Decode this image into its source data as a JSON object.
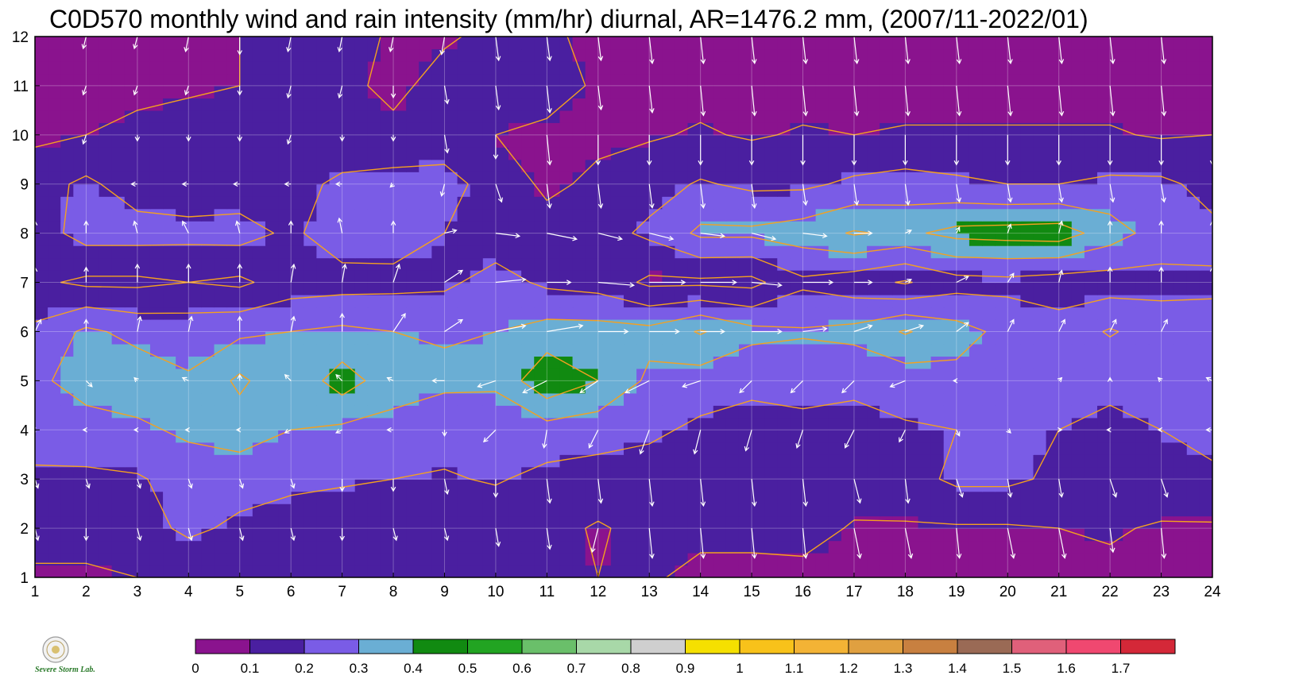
{
  "chart_data": {
    "type": "heatmap",
    "title": "C0D570 monthly wind and rain intensity (mm/hr) diurnal, AR=1476.2 mm, (2007/11-2022/01)",
    "xlabel": "",
    "ylabel": "",
    "x": [
      1,
      2,
      3,
      4,
      5,
      6,
      7,
      8,
      9,
      10,
      11,
      12,
      13,
      14,
      15,
      16,
      17,
      18,
      19,
      20,
      21,
      22,
      23,
      24
    ],
    "y": [
      1,
      2,
      3,
      4,
      5,
      6,
      7,
      8,
      9,
      10,
      11,
      12
    ],
    "xlim": [
      1,
      24
    ],
    "ylim": [
      1,
      12
    ],
    "x_tick_labels": [
      "1",
      "2",
      "3",
      "4",
      "5",
      "6",
      "7",
      "8",
      "9",
      "10",
      "11",
      "12",
      "13",
      "14",
      "15",
      "16",
      "17",
      "18",
      "19",
      "20",
      "21",
      "22",
      "23",
      "24"
    ],
    "y_tick_labels": [
      "1",
      "2",
      "3",
      "4",
      "5",
      "6",
      "7",
      "8",
      "9",
      "10",
      "11",
      "12"
    ],
    "grid": true,
    "contour_levels": [
      0.1,
      0.2,
      0.3,
      0.4,
      0.5
    ],
    "rain_intensity": [
      [
        0.08,
        0.08,
        0.1,
        0.12,
        0.12,
        0.1,
        0.11,
        0.11,
        0.12,
        0.12,
        0.12,
        0.1,
        0.11,
        0.08,
        0.08,
        0.07,
        0.06,
        0.06,
        0.06,
        0.05,
        0.05,
        0.08,
        0.06,
        0.06
      ],
      [
        0.15,
        0.15,
        0.16,
        0.22,
        0.18,
        0.16,
        0.15,
        0.14,
        0.14,
        0.13,
        0.13,
        0.09,
        0.13,
        0.12,
        0.12,
        0.14,
        0.09,
        0.09,
        0.09,
        0.09,
        0.1,
        0.11,
        0.09,
        0.09
      ],
      [
        0.18,
        0.18,
        0.19,
        0.24,
        0.24,
        0.22,
        0.21,
        0.2,
        0.19,
        0.21,
        0.17,
        0.16,
        0.15,
        0.15,
        0.15,
        0.17,
        0.15,
        0.16,
        0.22,
        0.22,
        0.18,
        0.17,
        0.16,
        0.17
      ],
      [
        0.25,
        0.26,
        0.28,
        0.32,
        0.35,
        0.3,
        0.28,
        0.27,
        0.24,
        0.23,
        0.26,
        0.24,
        0.22,
        0.18,
        0.17,
        0.17,
        0.17,
        0.19,
        0.2,
        0.21,
        0.2,
        0.18,
        0.2,
        0.25
      ],
      [
        0.28,
        0.34,
        0.36,
        0.31,
        0.42,
        0.32,
        0.45,
        0.34,
        0.32,
        0.32,
        0.48,
        0.4,
        0.28,
        0.25,
        0.22,
        0.24,
        0.22,
        0.24,
        0.27,
        0.25,
        0.24,
        0.22,
        0.23,
        0.26
      ],
      [
        0.22,
        0.32,
        0.27,
        0.26,
        0.28,
        0.3,
        0.32,
        0.3,
        0.29,
        0.3,
        0.34,
        0.34,
        0.33,
        0.41,
        0.33,
        0.31,
        0.33,
        0.41,
        0.34,
        0.27,
        0.24,
        0.31,
        0.25,
        0.22
      ],
      [
        0.12,
        0.08,
        0.08,
        0.1,
        0.08,
        0.15,
        0.16,
        0.17,
        0.18,
        0.24,
        0.18,
        0.16,
        0.08,
        0.08,
        0.07,
        0.18,
        0.14,
        0.09,
        0.16,
        0.17,
        0.15,
        0.15,
        0.17,
        0.19
      ],
      [
        0.15,
        0.24,
        0.24,
        0.23,
        0.24,
        0.18,
        0.26,
        0.25,
        0.2,
        0.14,
        0.12,
        0.16,
        0.22,
        0.32,
        0.32,
        0.35,
        0.41,
        0.38,
        0.43,
        0.44,
        0.45,
        0.35,
        0.25,
        0.22
      ],
      [
        0.16,
        0.22,
        0.15,
        0.14,
        0.14,
        0.15,
        0.23,
        0.24,
        0.26,
        0.13,
        0.09,
        0.11,
        0.16,
        0.21,
        0.18,
        0.18,
        0.22,
        0.24,
        0.22,
        0.2,
        0.2,
        0.22,
        0.22,
        0.17
      ],
      [
        0.08,
        0.1,
        0.12,
        0.13,
        0.13,
        0.12,
        0.1,
        0.12,
        0.11,
        0.1,
        0.07,
        0.09,
        0.09,
        0.11,
        0.09,
        0.11,
        0.1,
        0.11,
        0.11,
        0.11,
        0.11,
        0.11,
        0.09,
        0.1
      ],
      [
        0.06,
        0.06,
        0.08,
        0.09,
        0.1,
        0.12,
        0.12,
        0.08,
        0.13,
        0.14,
        0.16,
        0.08,
        0.07,
        0.07,
        0.07,
        0.06,
        0.06,
        0.06,
        0.06,
        0.06,
        0.06,
        0.06,
        0.06,
        0.06
      ],
      [
        0.05,
        0.05,
        0.07,
        0.08,
        0.1,
        0.13,
        0.13,
        0.09,
        0.09,
        0.12,
        0.12,
        0.07,
        0.06,
        0.06,
        0.06,
        0.06,
        0.05,
        0.05,
        0.05,
        0.05,
        0.05,
        0.05,
        0.05,
        0.05
      ]
    ],
    "wind_u": [
      [
        0.0,
        0.0,
        0.0,
        0.0,
        0.0,
        0.05,
        0.0,
        0.05,
        -0.1,
        0.0,
        0.05,
        0.0,
        0.05,
        0.05,
        0.05,
        0.05,
        0.05,
        0.05,
        0.05,
        0.05,
        0.05,
        0.05,
        0.05,
        0.05
      ],
      [
        0.05,
        0.0,
        0.05,
        0.05,
        0.05,
        0.05,
        0.0,
        0.05,
        0.05,
        0.05,
        0.05,
        -0.1,
        0.05,
        0.05,
        0.05,
        0.05,
        0.1,
        0.1,
        0.05,
        0.1,
        0.1,
        0.05,
        0.05,
        0.05
      ],
      [
        0.05,
        0.05,
        0.05,
        0.05,
        0.05,
        0.05,
        0.0,
        0.0,
        0.05,
        0.0,
        0.05,
        0.05,
        0.05,
        0.05,
        0.05,
        0.05,
        0.1,
        0.05,
        0.1,
        0.05,
        0.05,
        0.1,
        0.1,
        0.05
      ],
      [
        -0.05,
        -0.05,
        -0.05,
        -0.05,
        -0.05,
        -0.1,
        -0.1,
        -0.1,
        0.0,
        -0.2,
        -0.05,
        -0.15,
        -0.15,
        -0.1,
        -0.1,
        -0.1,
        -0.15,
        -0.1,
        0.05,
        0.05,
        0.05,
        -0.05,
        -0.05,
        -0.1
      ],
      [
        -0.1,
        0.1,
        -0.05,
        -0.1,
        0.0,
        -0.1,
        -0.1,
        -0.1,
        -0.2,
        -0.3,
        -0.4,
        -0.3,
        -0.4,
        -0.3,
        -0.2,
        -0.2,
        -0.2,
        -0.25,
        -0.05,
        0.0,
        0.05,
        0.0,
        -0.05,
        -0.1
      ],
      [
        0.1,
        0.0,
        0.05,
        0.05,
        0.0,
        0.05,
        0.0,
        0.2,
        0.3,
        0.5,
        0.6,
        0.5,
        0.5,
        0.4,
        0.5,
        0.4,
        0.3,
        0.3,
        0.2,
        0.1,
        0.1,
        0.1,
        0.1,
        0.1
      ],
      [
        0.0,
        0.0,
        0.0,
        0.0,
        0.0,
        0.05,
        0.05,
        0.1,
        0.3,
        0.5,
        0.4,
        0.6,
        0.6,
        0.6,
        0.5,
        0.5,
        0.3,
        0.1,
        0.2,
        0.1,
        0.05,
        0.0,
        0.0,
        0.0
      ],
      [
        0.0,
        0.0,
        -0.05,
        -0.1,
        -0.05,
        0.0,
        -0.05,
        0.0,
        0.2,
        0.4,
        0.5,
        0.4,
        0.4,
        0.4,
        0.4,
        0.4,
        0.3,
        0.1,
        0.05,
        0.05,
        0.05,
        0.0,
        0.0,
        0.0
      ],
      [
        0.0,
        0.0,
        -0.1,
        -0.1,
        -0.1,
        -0.1,
        -0.1,
        -0.05,
        -0.05,
        0.1,
        0.05,
        0.05,
        0.05,
        0.05,
        0.05,
        0.05,
        0.05,
        0.05,
        0.05,
        0.05,
        0.05,
        0.05,
        0.05,
        0.05
      ],
      [
        -0.05,
        -0.05,
        0.0,
        0.0,
        0.0,
        -0.05,
        0.0,
        0.0,
        0.05,
        0.0,
        0.05,
        0.0,
        0.0,
        0.0,
        0.0,
        0.0,
        0.0,
        0.0,
        0.0,
        0.0,
        0.0,
        0.0,
        0.0,
        0.0
      ],
      [
        -0.05,
        -0.05,
        -0.05,
        -0.05,
        0.0,
        -0.05,
        -0.05,
        0.0,
        0.05,
        0.05,
        0.05,
        0.05,
        0.05,
        0.05,
        0.05,
        0.05,
        0.05,
        0.05,
        0.05,
        0.05,
        0.05,
        0.05,
        0.05,
        0.05
      ],
      [
        -0.05,
        -0.05,
        -0.05,
        -0.05,
        0.0,
        -0.05,
        -0.05,
        -0.05,
        -0.05,
        0.05,
        0.05,
        0.05,
        0.05,
        0.05,
        0.05,
        0.05,
        0.05,
        0.05,
        0.05,
        0.05,
        0.05,
        0.05,
        0.05,
        0.05
      ]
    ],
    "wind_v": [
      [
        -0.3,
        -0.35,
        -0.35,
        -0.3,
        -0.3,
        -0.35,
        -0.3,
        -0.3,
        -0.3,
        -0.45,
        -0.5,
        -0.5,
        -0.6,
        -0.5,
        -0.5,
        -0.5,
        -0.5,
        -0.5,
        -0.5,
        -0.5,
        -0.5,
        -0.5,
        -0.5,
        -0.5
      ],
      [
        -0.2,
        -0.2,
        -0.2,
        -0.2,
        -0.2,
        -0.2,
        -0.2,
        -0.2,
        -0.2,
        -0.3,
        -0.35,
        -0.4,
        -0.5,
        -0.5,
        -0.5,
        -0.5,
        -0.5,
        -0.5,
        -0.5,
        -0.5,
        -0.5,
        -0.4,
        -0.5,
        -0.45
      ],
      [
        -0.15,
        -0.15,
        -0.15,
        -0.15,
        -0.15,
        -0.15,
        -0.2,
        -0.2,
        -0.25,
        -0.3,
        -0.4,
        -0.4,
        -0.45,
        -0.45,
        -0.45,
        -0.45,
        -0.4,
        -0.4,
        -0.3,
        -0.3,
        -0.3,
        -0.3,
        -0.3,
        -0.3
      ],
      [
        0.0,
        0.0,
        0.0,
        0.0,
        0.0,
        -0.05,
        -0.05,
        0.0,
        -0.1,
        -0.2,
        -0.3,
        -0.3,
        -0.4,
        -0.4,
        -0.35,
        -0.3,
        -0.3,
        -0.2,
        -0.1,
        -0.05,
        0.0,
        0.0,
        0.0,
        0.0
      ],
      [
        0.05,
        -0.1,
        0.05,
        0.05,
        0.1,
        0.1,
        0.1,
        0.05,
        0.0,
        -0.1,
        -0.2,
        -0.2,
        -0.2,
        -0.1,
        -0.2,
        -0.2,
        -0.2,
        -0.1,
        0.0,
        0.0,
        0.05,
        0.05,
        0.05,
        0.05
      ],
      [
        0.2,
        0.2,
        0.25,
        0.25,
        0.25,
        0.25,
        0.3,
        0.3,
        0.2,
        0.1,
        0.1,
        0.0,
        0.0,
        0.0,
        0.0,
        0.05,
        0.1,
        0.1,
        0.15,
        0.2,
        0.2,
        0.2,
        0.2,
        0.2
      ],
      [
        0.25,
        0.25,
        0.3,
        0.3,
        0.3,
        0.3,
        0.3,
        0.3,
        0.2,
        0.05,
        0.0,
        -0.05,
        0.0,
        0.0,
        -0.05,
        0.0,
        0.0,
        0.05,
        0.1,
        0.15,
        0.2,
        0.25,
        0.25,
        0.25
      ],
      [
        0.2,
        0.2,
        0.2,
        0.2,
        0.2,
        0.2,
        0.25,
        0.2,
        0.05,
        -0.05,
        -0.1,
        -0.1,
        -0.1,
        -0.05,
        -0.1,
        -0.05,
        0.0,
        0.05,
        0.1,
        0.15,
        0.2,
        0.2,
        0.2,
        0.2
      ],
      [
        0.0,
        0.0,
        0.0,
        0.0,
        0.0,
        0.0,
        0.0,
        -0.05,
        -0.2,
        -0.3,
        -0.4,
        -0.4,
        -0.4,
        -0.4,
        -0.4,
        -0.35,
        -0.35,
        -0.35,
        -0.3,
        -0.3,
        -0.3,
        -0.3,
        -0.3,
        -0.3
      ],
      [
        -0.15,
        -0.15,
        -0.1,
        -0.1,
        -0.1,
        -0.15,
        -0.1,
        -0.1,
        -0.3,
        -0.4,
        -0.5,
        -0.5,
        -0.5,
        -0.5,
        -0.5,
        -0.5,
        -0.5,
        -0.5,
        -0.5,
        -0.5,
        -0.5,
        -0.5,
        -0.5,
        -0.5
      ],
      [
        -0.15,
        -0.15,
        -0.15,
        -0.15,
        -0.15,
        -0.2,
        -0.2,
        -0.2,
        -0.3,
        -0.4,
        -0.45,
        -0.4,
        -0.45,
        -0.5,
        -0.5,
        -0.5,
        -0.5,
        -0.5,
        -0.5,
        -0.5,
        -0.5,
        -0.5,
        -0.5,
        -0.45
      ],
      [
        -0.2,
        -0.2,
        -0.2,
        -0.25,
        -0.3,
        -0.25,
        -0.25,
        -0.25,
        -0.3,
        -0.4,
        -0.4,
        -0.4,
        -0.45,
        -0.45,
        -0.45,
        -0.45,
        -0.45,
        -0.45,
        -0.45,
        -0.45,
        -0.45,
        -0.45,
        -0.45,
        -0.45
      ]
    ],
    "colorbar": {
      "tick_labels": [
        "0",
        "0.1",
        "0.2",
        "0.3",
        "0.4",
        "0.5",
        "0.6",
        "0.7",
        "0.8",
        "0.9",
        "1",
        "1.1",
        "1.2",
        "1.3",
        "1.4",
        "1.5",
        "1.6",
        "1.7"
      ],
      "colors": [
        "#8a138e",
        "#4a1fa0",
        "#7a5ce6",
        "#6aaed4",
        "#118a11",
        "#22a422",
        "#6abf6a",
        "#a8d8a8",
        "#cfcfcf",
        "#f5e000",
        "#f8c21a",
        "#f3b335",
        "#e0a040",
        "#c88040",
        "#9a6a55",
        "#e0607a",
        "#f04870"
      ],
      "extra_colors": [
        "#d42838"
      ]
    },
    "contour_color": "#f4a020",
    "arrow_color": "#ffffff",
    "background_color": "#ffffff"
  },
  "logo": {
    "label": "Severe Storm Lab."
  }
}
